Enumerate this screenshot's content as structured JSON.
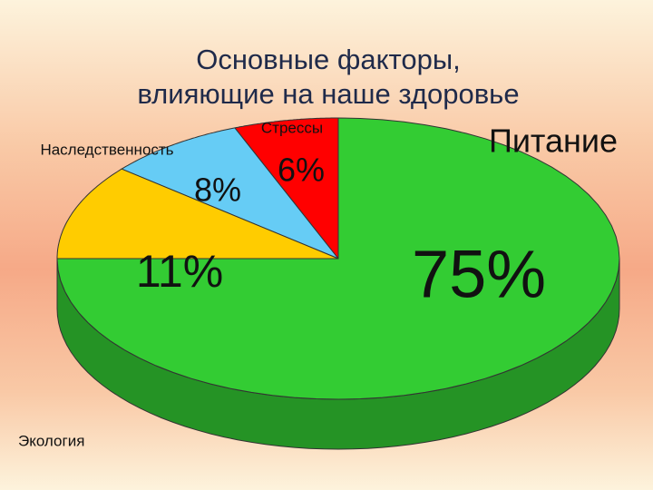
{
  "chart_data": {
    "type": "pie",
    "title": [
      "Основные факторы,",
      "влияющие на наше здоровье"
    ],
    "categories": [
      "Стрессы",
      "Наследственность",
      "Экология",
      "Питание"
    ],
    "values": [
      6,
      8,
      11,
      75
    ],
    "value_labels": [
      "6%",
      "8%",
      "11%",
      "75%"
    ],
    "colors": [
      "#ff0000",
      "#66ccf5",
      "#ffcc00",
      "#33cc33"
    ]
  }
}
